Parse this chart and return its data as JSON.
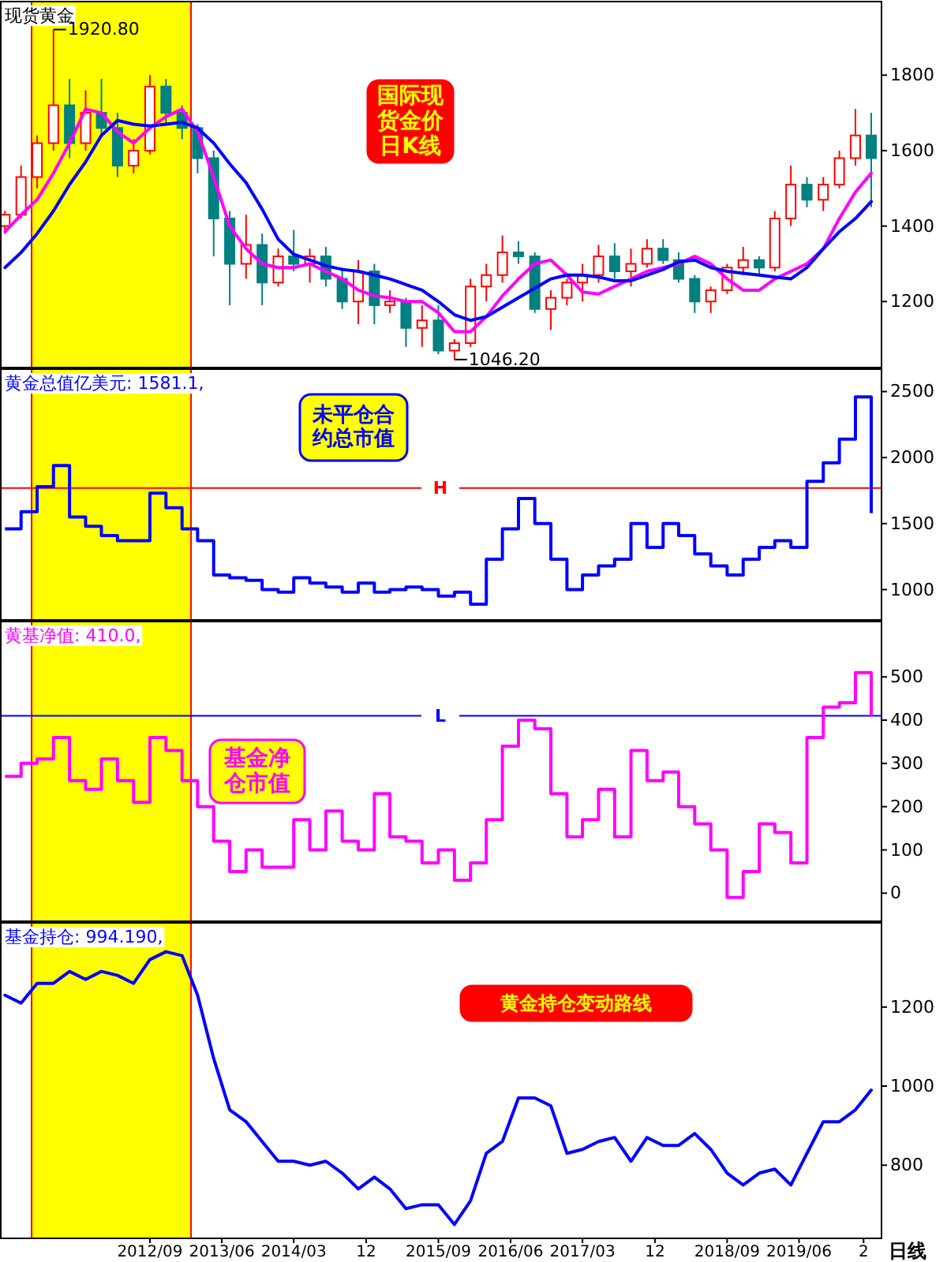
{
  "chart_data": [
    {
      "type": "candlestick",
      "title": "现货黄金",
      "x": [
        "2011-03",
        "2011-05",
        "2011-07",
        "2011-09",
        "2011-11",
        "2012-01",
        "2012-03",
        "2012-05",
        "2012-07",
        "2012-09",
        "2012-11",
        "2013-01",
        "2013-03",
        "2013-05",
        "2013-07",
        "2013-09",
        "2013-11",
        "2014-01",
        "2014-03",
        "2014-05",
        "2014-07",
        "2014-09",
        "2014-11",
        "2015-01",
        "2015-03",
        "2015-05",
        "2015-07",
        "2015-09",
        "2015-11",
        "2016-01",
        "2016-03",
        "2016-05",
        "2016-07",
        "2016-09",
        "2016-11",
        "2017-01",
        "2017-03",
        "2017-05",
        "2017-07",
        "2017-09",
        "2017-11",
        "2018-01",
        "2018-03",
        "2018-05",
        "2018-07",
        "2018-09",
        "2018-11",
        "2019-01",
        "2019-03",
        "2019-05",
        "2019-07",
        "2019-09",
        "2019-11",
        "2020-01",
        "2020-03"
      ],
      "ohlc": [
        [
          1400,
          1440,
          1380,
          1430
        ],
        [
          1430,
          1560,
          1420,
          1530
        ],
        [
          1530,
          1640,
          1500,
          1620
        ],
        [
          1620,
          1920.8,
          1600,
          1720
        ],
        [
          1720,
          1790,
          1580,
          1620
        ],
        [
          1620,
          1760,
          1600,
          1700
        ],
        [
          1700,
          1790,
          1640,
          1660
        ],
        [
          1660,
          1700,
          1530,
          1560
        ],
        [
          1560,
          1630,
          1540,
          1600
        ],
        [
          1600,
          1800,
          1590,
          1770
        ],
        [
          1770,
          1790,
          1670,
          1700
        ],
        [
          1700,
          1720,
          1630,
          1660
        ],
        [
          1660,
          1670,
          1540,
          1580
        ],
        [
          1580,
          1600,
          1320,
          1420
        ],
        [
          1420,
          1440,
          1190,
          1300
        ],
        [
          1300,
          1430,
          1260,
          1350
        ],
        [
          1350,
          1380,
          1190,
          1250
        ],
        [
          1250,
          1340,
          1240,
          1320
        ],
        [
          1320,
          1390,
          1280,
          1300
        ],
        [
          1300,
          1340,
          1250,
          1320
        ],
        [
          1320,
          1345,
          1240,
          1260
        ],
        [
          1260,
          1290,
          1180,
          1200
        ],
        [
          1200,
          1310,
          1140,
          1280
        ],
        [
          1280,
          1300,
          1140,
          1190
        ],
        [
          1190,
          1230,
          1170,
          1200
        ],
        [
          1200,
          1210,
          1080,
          1130
        ],
        [
          1130,
          1190,
          1080,
          1150
        ],
        [
          1150,
          1190,
          1060,
          1070
        ],
        [
          1070,
          1100,
          1046.2,
          1090
        ],
        [
          1090,
          1260,
          1080,
          1240
        ],
        [
          1240,
          1300,
          1200,
          1270
        ],
        [
          1270,
          1375,
          1250,
          1330
        ],
        [
          1330,
          1360,
          1300,
          1320
        ],
        [
          1320,
          1330,
          1170,
          1180
        ],
        [
          1180,
          1230,
          1125,
          1210
        ],
        [
          1210,
          1260,
          1190,
          1250
        ],
        [
          1250,
          1300,
          1200,
          1270
        ],
        [
          1270,
          1350,
          1250,
          1320
        ],
        [
          1320,
          1355,
          1260,
          1280
        ],
        [
          1280,
          1340,
          1240,
          1300
        ],
        [
          1300,
          1365,
          1290,
          1340
        ],
        [
          1340,
          1365,
          1300,
          1310
        ],
        [
          1310,
          1330,
          1250,
          1260
        ],
        [
          1260,
          1270,
          1170,
          1200
        ],
        [
          1200,
          1240,
          1170,
          1230
        ],
        [
          1230,
          1300,
          1220,
          1290
        ],
        [
          1290,
          1345,
          1270,
          1310
        ],
        [
          1310,
          1320,
          1270,
          1290
        ],
        [
          1290,
          1440,
          1280,
          1420
        ],
        [
          1420,
          1560,
          1400,
          1510
        ],
        [
          1510,
          1530,
          1450,
          1470
        ],
        [
          1470,
          1530,
          1440,
          1510
        ],
        [
          1510,
          1600,
          1500,
          1580
        ],
        [
          1580,
          1710,
          1560,
          1640
        ],
        [
          1640,
          1700,
          1450,
          1580
        ]
      ],
      "series": [
        {
          "type": "line",
          "color": "#ff00ff",
          "values": [
            1385,
            1430,
            1470,
            1540,
            1620,
            1710,
            1700,
            1650,
            1620,
            1660,
            1690,
            1710,
            1650,
            1530,
            1400,
            1340,
            1300,
            1290,
            1290,
            1300,
            1280,
            1260,
            1230,
            1215,
            1210,
            1200,
            1200,
            1170,
            1120,
            1120,
            1160,
            1215,
            1260,
            1300,
            1310,
            1270,
            1225,
            1220,
            1240,
            1260,
            1280,
            1290,
            1300,
            1320,
            1300,
            1260,
            1230,
            1230,
            1260,
            1280,
            1300,
            1340,
            1420,
            1490,
            1540
          ]
        },
        {
          "type": "line",
          "color": "#0000ff",
          "values": [
            1290,
            1330,
            1380,
            1440,
            1510,
            1570,
            1640,
            1680,
            1670,
            1665,
            1670,
            1675,
            1660,
            1620,
            1565,
            1515,
            1445,
            1365,
            1325,
            1310,
            1295,
            1285,
            1280,
            1270,
            1260,
            1245,
            1230,
            1200,
            1165,
            1150,
            1160,
            1185,
            1210,
            1235,
            1260,
            1270,
            1270,
            1265,
            1255,
            1255,
            1270,
            1285,
            1305,
            1310,
            1290,
            1280,
            1275,
            1270,
            1265,
            1260,
            1290,
            1340,
            1385,
            1420,
            1465
          ]
        }
      ],
      "xlim": [
        "2011-02-10",
        "2020-04-06"
      ],
      "ylim": [
        1025,
        1995
      ],
      "yticks": [
        1200,
        1400,
        1600,
        1800
      ],
      "tick_labels": "y",
      "bands": [
        {
          "axis": "x",
          "from": "2011-06-10",
          "to": "2013-02-04",
          "color": "#ffff00"
        }
      ],
      "annotations": [
        "国际现货金价日K线",
        {
          "text": "1920.80",
          "x": "2011-09",
          "y": 1920.8
        },
        {
          "text": "1046.20",
          "x": "2015-11",
          "y": 1046.2
        }
      ]
    },
    {
      "type": "step",
      "title": "黄金总值亿美元: 1581.1,",
      "x": [
        "2011-03",
        "2011-05",
        "2011-07",
        "2011-09",
        "2011-11",
        "2012-01",
        "2012-03",
        "2012-05",
        "2012-07",
        "2012-09",
        "2012-11",
        "2013-01",
        "2013-03",
        "2013-05",
        "2013-07",
        "2013-09",
        "2013-11",
        "2014-01",
        "2014-03",
        "2014-05",
        "2014-07",
        "2014-09",
        "2014-11",
        "2015-01",
        "2015-03",
        "2015-05",
        "2015-07",
        "2015-09",
        "2015-11",
        "2016-01",
        "2016-03",
        "2016-05",
        "2016-07",
        "2016-09",
        "2016-11",
        "2017-01",
        "2017-03",
        "2017-05",
        "2017-07",
        "2017-09",
        "2017-11",
        "2018-01",
        "2018-03",
        "2018-05",
        "2018-07",
        "2018-09",
        "2018-11",
        "2019-01",
        "2019-03",
        "2019-05",
        "2019-07",
        "2019-09",
        "2019-11",
        "2020-01",
        "2020-03"
      ],
      "series": [
        {
          "color": "#0000ff",
          "values": [
            1460,
            1590,
            1780,
            1940,
            1550,
            1480,
            1410,
            1370,
            1370,
            1730,
            1620,
            1460,
            1370,
            1110,
            1090,
            1070,
            1000,
            980,
            1090,
            1050,
            1020,
            980,
            1050,
            980,
            1000,
            1020,
            1000,
            950,
            980,
            890,
            1230,
            1460,
            1690,
            1500,
            1230,
            1000,
            1110,
            1180,
            1230,
            1500,
            1320,
            1500,
            1410,
            1270,
            1180,
            1110,
            1230,
            1320,
            1370,
            1320,
            1820,
            1960,
            2140,
            2460,
            1580
          ]
        }
      ],
      "xlim": [
        "2011-02-10",
        "2020-04-06"
      ],
      "ylim": [
        770,
        2670
      ],
      "yticks": [
        1000,
        1500,
        2000,
        2500
      ],
      "tick_labels": "y",
      "bands": [
        {
          "axis": "x",
          "from": "2011-06-10",
          "to": "2013-02-04",
          "color": "#ffff00"
        }
      ],
      "ref_lines": [
        {
          "axis": "y",
          "value": 1770,
          "label": "H",
          "color": "#ff0000"
        }
      ],
      "annotations": [
        "未平仓合约总市值"
      ]
    },
    {
      "type": "step",
      "title": "黄基净值: 410.0,",
      "x": [
        "2011-03",
        "2011-05",
        "2011-07",
        "2011-09",
        "2011-11",
        "2012-01",
        "2012-03",
        "2012-05",
        "2012-07",
        "2012-09",
        "2012-11",
        "2013-01",
        "2013-03",
        "2013-05",
        "2013-07",
        "2013-09",
        "2013-11",
        "2014-01",
        "2014-03",
        "2014-05",
        "2014-07",
        "2014-09",
        "2014-11",
        "2015-01",
        "2015-03",
        "2015-05",
        "2015-07",
        "2015-09",
        "2015-11",
        "2016-01",
        "2016-03",
        "2016-05",
        "2016-07",
        "2016-09",
        "2016-11",
        "2017-01",
        "2017-03",
        "2017-05",
        "2017-07",
        "2017-09",
        "2017-11",
        "2018-01",
        "2018-03",
        "2018-05",
        "2018-07",
        "2018-09",
        "2018-11",
        "2019-01",
        "2019-03",
        "2019-05",
        "2019-07",
        "2019-09",
        "2019-11",
        "2020-01",
        "2020-03"
      ],
      "series": [
        {
          "color": "#ff00ff",
          "values": [
            270,
            300,
            310,
            360,
            260,
            240,
            310,
            260,
            210,
            360,
            330,
            260,
            200,
            120,
            50,
            100,
            60,
            60,
            170,
            100,
            190,
            120,
            100,
            230,
            130,
            120,
            70,
            100,
            30,
            70,
            170,
            340,
            400,
            380,
            230,
            130,
            170,
            240,
            130,
            330,
            260,
            280,
            200,
            160,
            100,
            -10,
            50,
            160,
            140,
            70,
            360,
            430,
            440,
            510,
            410
          ]
        }
      ],
      "xlim": [
        "2011-02-10",
        "2020-04-06"
      ],
      "ylim": [
        -65,
        628
      ],
      "yticks": [
        0,
        100,
        200,
        300,
        400,
        500
      ],
      "tick_labels": "y",
      "bands": [
        {
          "axis": "x",
          "from": "2011-06-10",
          "to": "2013-02-04",
          "color": "#ffff00"
        }
      ],
      "ref_lines": [
        {
          "axis": "y",
          "value": 410,
          "label": "L",
          "color": "#0000ff"
        }
      ],
      "annotations": [
        "基金净仓市值"
      ]
    },
    {
      "type": "line",
      "title": "基金持仓: 994.190,",
      "x": [
        "2011-03",
        "2011-05",
        "2011-07",
        "2011-09",
        "2011-11",
        "2012-01",
        "2012-03",
        "2012-05",
        "2012-07",
        "2012-09",
        "2012-11",
        "2013-01",
        "2013-03",
        "2013-05",
        "2013-07",
        "2013-09",
        "2013-11",
        "2014-01",
        "2014-03",
        "2014-05",
        "2014-07",
        "2014-09",
        "2014-11",
        "2015-01",
        "2015-03",
        "2015-05",
        "2015-07",
        "2015-09",
        "2015-11",
        "2016-01",
        "2016-03",
        "2016-05",
        "2016-07",
        "2016-09",
        "2016-11",
        "2017-01",
        "2017-03",
        "2017-05",
        "2017-07",
        "2017-09",
        "2017-11",
        "2018-01",
        "2018-03",
        "2018-05",
        "2018-07",
        "2018-09",
        "2018-11",
        "2019-01",
        "2019-03",
        "2019-05",
        "2019-07",
        "2019-09",
        "2019-11",
        "2020-01",
        "2020-03"
      ],
      "series": [
        {
          "color": "#0000ff",
          "values": [
            1230,
            1210,
            1260,
            1260,
            1290,
            1270,
            1290,
            1280,
            1260,
            1320,
            1340,
            1330,
            1230,
            1070,
            940,
            910,
            860,
            810,
            810,
            800,
            810,
            780,
            740,
            770,
            740,
            690,
            700,
            700,
            650,
            710,
            830,
            860,
            970,
            970,
            950,
            830,
            840,
            860,
            870,
            810,
            870,
            850,
            850,
            880,
            840,
            780,
            750,
            780,
            790,
            750,
            830,
            910,
            910,
            940,
            990
          ]
        }
      ],
      "xlim": [
        "2011-02-10",
        "2020-04-06"
      ],
      "ylim": [
        615,
        1413
      ],
      "yticks": [
        800,
        1000,
        1200
      ],
      "xticks": [
        {
          "value": "2012-09-01",
          "label": "2012/09"
        },
        {
          "value": "2013-06-01",
          "label": "2013/06"
        },
        {
          "value": "2014-03-01",
          "label": "2014/03"
        },
        {
          "value": "2014-12-01",
          "label": "12"
        },
        {
          "value": "2015-09-01",
          "label": "2015/09"
        },
        {
          "value": "2016-06-01",
          "label": "2016/06"
        },
        {
          "value": "2017-03-01",
          "label": "2017/03"
        },
        {
          "value": "2017-12-01",
          "label": "12"
        },
        {
          "value": "2018-09-01",
          "label": "2018/09"
        },
        {
          "value": "2019-06-01",
          "label": "2019/06"
        },
        {
          "value": "2020-02-01",
          "label": "2"
        }
      ],
      "bands": [
        {
          "axis": "x",
          "from": "2011-06-10",
          "to": "2013-02-04",
          "color": "#ffff00"
        }
      ],
      "annotations": [
        "黄金持仓变动路线",
        "日线"
      ]
    }
  ]
}
